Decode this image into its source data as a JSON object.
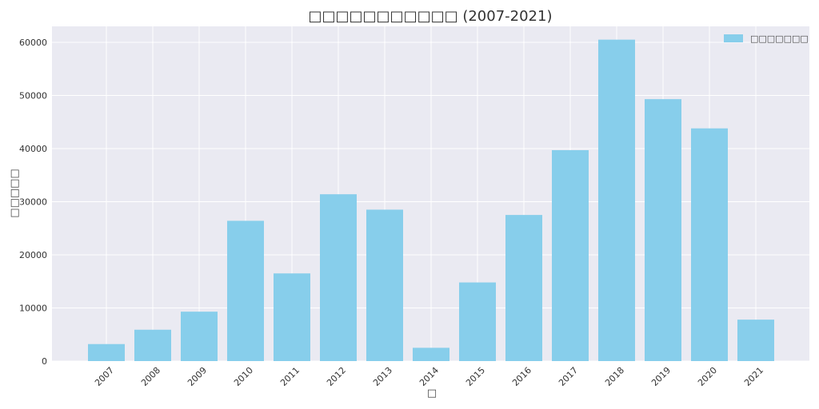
{
  "chart_data": {
    "type": "bar",
    "title": "□□□□□□□□□□□ (2007-2021)",
    "xlabel": "□",
    "ylabel": "□□□□□",
    "categories": [
      "2007",
      "2008",
      "2009",
      "2010",
      "2011",
      "2012",
      "2013",
      "2014",
      "2015",
      "2016",
      "2017",
      "2018",
      "2019",
      "2020",
      "2021"
    ],
    "series": [
      {
        "name": "□□□□□□□",
        "values": [
          3200,
          5900,
          9300,
          26400,
          16500,
          31400,
          28500,
          2500,
          14800,
          27500,
          39700,
          60500,
          49300,
          43800,
          7800
        ]
      }
    ],
    "ylim": [
      0,
      63000
    ],
    "yticks": [
      0,
      10000,
      20000,
      30000,
      40000,
      50000,
      60000
    ],
    "grid": true,
    "legend_position": "top-right",
    "bar_color": "#87CEEB",
    "background_color": "#EAEAF2"
  }
}
